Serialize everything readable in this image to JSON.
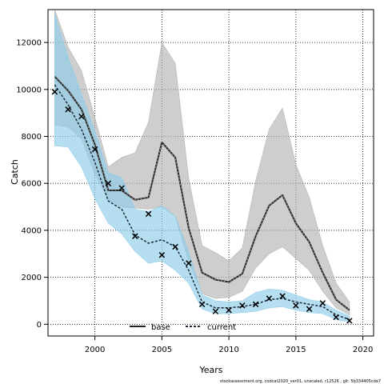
{
  "chart_data": {
    "type": "line",
    "xlabel": "Years",
    "ylabel": "Catch",
    "xlim": [
      1996.5,
      2020.8
    ],
    "ylim": [
      -500,
      13400
    ],
    "x_ticks": [
      2000,
      2005,
      2010,
      2015,
      2020
    ],
    "y_ticks": [
      0,
      2000,
      4000,
      6000,
      8000,
      10000,
      12000
    ],
    "grid": true,
    "legend_position": "bottom-center",
    "footnote": "stockassessment.org, codcat2020_ver01, unscaled, r12526 , git: 5b334405cda7",
    "observed": {
      "marker": "x",
      "years": [
        1997,
        1998,
        1999,
        2000,
        2001,
        2002,
        2003,
        2004,
        2005,
        2006,
        2007,
        2008,
        2009,
        2010,
        2011,
        2012,
        2013,
        2014,
        2015,
        2016,
        2017,
        2018,
        2019
      ],
      "values": [
        9900,
        9150,
        8850,
        7450,
        6000,
        5800,
        3750,
        4700,
        2950,
        3300,
        2600,
        850,
        550,
        600,
        800,
        850,
        1100,
        1200,
        800,
        650,
        900,
        300,
        150
      ]
    },
    "series": [
      {
        "name": "base",
        "color": "#222222",
        "band_color": "#b3b3b3",
        "years": [
          1997,
          1998,
          1999,
          2000,
          2001,
          2002,
          2003,
          2004,
          2005,
          2006,
          2007,
          2008,
          2009,
          2010,
          2011,
          2012,
          2013,
          2014,
          2015,
          2016,
          2017,
          2018,
          2019
        ],
        "values": [
          10550,
          9950,
          9150,
          7650,
          5700,
          5700,
          5300,
          5400,
          7750,
          7100,
          4100,
          2200,
          1900,
          1800,
          2150,
          3750,
          5050,
          5500,
          4300,
          3500,
          2200,
          1050,
          600
        ],
        "lower": [
          8500,
          8400,
          7900,
          6400,
          5300,
          5000,
          4950,
          4900,
          5000,
          4600,
          2650,
          1300,
          1100,
          1150,
          1400,
          2400,
          3000,
          3300,
          2800,
          2300,
          1400,
          700,
          400
        ],
        "upper": [
          13400,
          11800,
          10800,
          8800,
          6700,
          7100,
          7300,
          8600,
          12000,
          11100,
          6200,
          3350,
          3050,
          2700,
          3250,
          6100,
          8300,
          9200,
          6800,
          5400,
          3350,
          1750,
          950
        ]
      },
      {
        "name": "current",
        "color": "#1c2a3a",
        "band_color": "#8fcdea",
        "years": [
          1997,
          1998,
          1999,
          2000,
          2001,
          2002,
          2003,
          2004,
          2005,
          2006,
          2007,
          2008,
          2009,
          2010,
          2011,
          2012,
          2013,
          2014,
          2015,
          2016,
          2017,
          2018,
          2019
        ],
        "values": [
          10200,
          9350,
          8300,
          6900,
          5250,
          4900,
          3800,
          3450,
          3600,
          3300,
          2300,
          950,
          700,
          700,
          750,
          850,
          1050,
          1100,
          950,
          850,
          750,
          400,
          200
        ],
        "lower": [
          7600,
          7550,
          6700,
          5350,
          4300,
          3850,
          3100,
          2600,
          2700,
          2300,
          1750,
          650,
          450,
          450,
          500,
          550,
          700,
          750,
          600,
          500,
          450,
          200,
          100
        ],
        "upper": [
          13200,
          11400,
          9800,
          8250,
          6450,
          6250,
          4900,
          4800,
          5050,
          4600,
          3100,
          1250,
          1000,
          950,
          1000,
          1350,
          1500,
          1450,
          1250,
          1050,
          950,
          600,
          350
        ]
      }
    ]
  }
}
